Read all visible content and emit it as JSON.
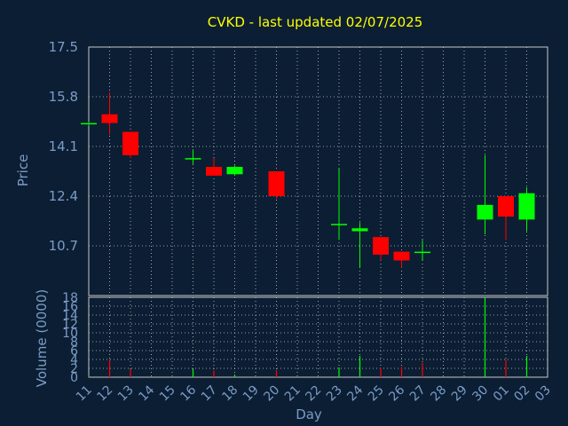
{
  "title": "CVKD - last updated 02/07/2025",
  "colors": {
    "background": "#0c1e33",
    "frame": "#c8c8c8",
    "grid": "#c8c8c8",
    "title": "#ffff00",
    "axis_text": "#7a9cc7",
    "up": "#00ff00",
    "down": "#ff0000"
  },
  "chart_data": [
    {
      "type": "candlestick",
      "ylabel": "Price",
      "ylim": [
        9.0,
        17.5
      ],
      "yticks": [
        "17.5",
        "15.8",
        "14.1",
        "12.4",
        "10.7"
      ],
      "x_categories": [
        "11",
        "12",
        "13",
        "14",
        "15",
        "16",
        "17",
        "18",
        "19",
        "20",
        "21",
        "22",
        "23",
        "24",
        "25",
        "26",
        "27",
        "28",
        "29",
        "30",
        "01",
        "02",
        "03"
      ],
      "grid": true,
      "candles": [
        {
          "x": "11",
          "open": 14.9,
          "high": 14.95,
          "low": 14.8,
          "close": 14.9
        },
        {
          "x": "12",
          "open": 15.2,
          "high": 15.95,
          "low": 14.5,
          "close": 14.9
        },
        {
          "x": "13",
          "open": 14.6,
          "high": 14.6,
          "low": 13.7,
          "close": 13.8
        },
        {
          "x": "16",
          "open": 13.7,
          "high": 14.0,
          "low": 13.5,
          "close": 13.7
        },
        {
          "x": "17",
          "open": 13.4,
          "high": 13.7,
          "low": 13.1,
          "close": 13.1
        },
        {
          "x": "18",
          "open": 13.15,
          "high": 13.45,
          "low": 13.1,
          "close": 13.4
        },
        {
          "x": "20",
          "open": 13.25,
          "high": 13.25,
          "low": 12.3,
          "close": 12.4
        },
        {
          "x": "23",
          "open": 11.45,
          "high": 13.35,
          "low": 10.9,
          "close": 11.45
        },
        {
          "x": "24",
          "open": 11.2,
          "high": 11.5,
          "low": 9.95,
          "close": 11.3
        },
        {
          "x": "25",
          "open": 11.0,
          "high": 11.0,
          "low": 10.2,
          "close": 10.4
        },
        {
          "x": "26",
          "open": 10.5,
          "high": 10.5,
          "low": 9.95,
          "close": 10.2
        },
        {
          "x": "27",
          "open": 10.5,
          "high": 10.9,
          "low": 10.2,
          "close": 10.5
        },
        {
          "x": "30",
          "open": 11.6,
          "high": 13.8,
          "low": 11.1,
          "close": 12.1
        },
        {
          "x": "01",
          "open": 12.4,
          "high": 12.4,
          "low": 10.9,
          "close": 11.7
        },
        {
          "x": "02",
          "open": 11.6,
          "high": 12.7,
          "low": 11.2,
          "close": 12.5
        }
      ]
    },
    {
      "type": "bar",
      "ylabel": "Volume (0000)",
      "xlabel": "Day",
      "ylim": [
        0,
        18
      ],
      "yticks": [
        "18",
        "16",
        "14",
        "12",
        "10",
        "8",
        "6",
        "4",
        "2",
        "0"
      ],
      "x_categories": [
        "11",
        "12",
        "13",
        "14",
        "15",
        "16",
        "17",
        "18",
        "19",
        "20",
        "21",
        "22",
        "23",
        "24",
        "25",
        "26",
        "27",
        "28",
        "29",
        "30",
        "01",
        "02",
        "03"
      ],
      "grid": true,
      "bars": [
        {
          "x": "11",
          "value": 0.3,
          "direction": "up"
        },
        {
          "x": "12",
          "value": 4.0,
          "direction": "down"
        },
        {
          "x": "13",
          "value": 1.8,
          "direction": "down"
        },
        {
          "x": "16",
          "value": 1.8,
          "direction": "up"
        },
        {
          "x": "17",
          "value": 1.5,
          "direction": "down"
        },
        {
          "x": "18",
          "value": 0.6,
          "direction": "up"
        },
        {
          "x": "20",
          "value": 1.6,
          "direction": "down"
        },
        {
          "x": "23",
          "value": 2.2,
          "direction": "up"
        },
        {
          "x": "24",
          "value": 4.8,
          "direction": "up"
        },
        {
          "x": "25",
          "value": 2.0,
          "direction": "down"
        },
        {
          "x": "26",
          "value": 2.3,
          "direction": "down"
        },
        {
          "x": "27",
          "value": 3.2,
          "direction": "down"
        },
        {
          "x": "30",
          "value": 18.0,
          "direction": "up"
        },
        {
          "x": "01",
          "value": 4.0,
          "direction": "down"
        },
        {
          "x": "02",
          "value": 4.8,
          "direction": "up"
        }
      ]
    }
  ]
}
